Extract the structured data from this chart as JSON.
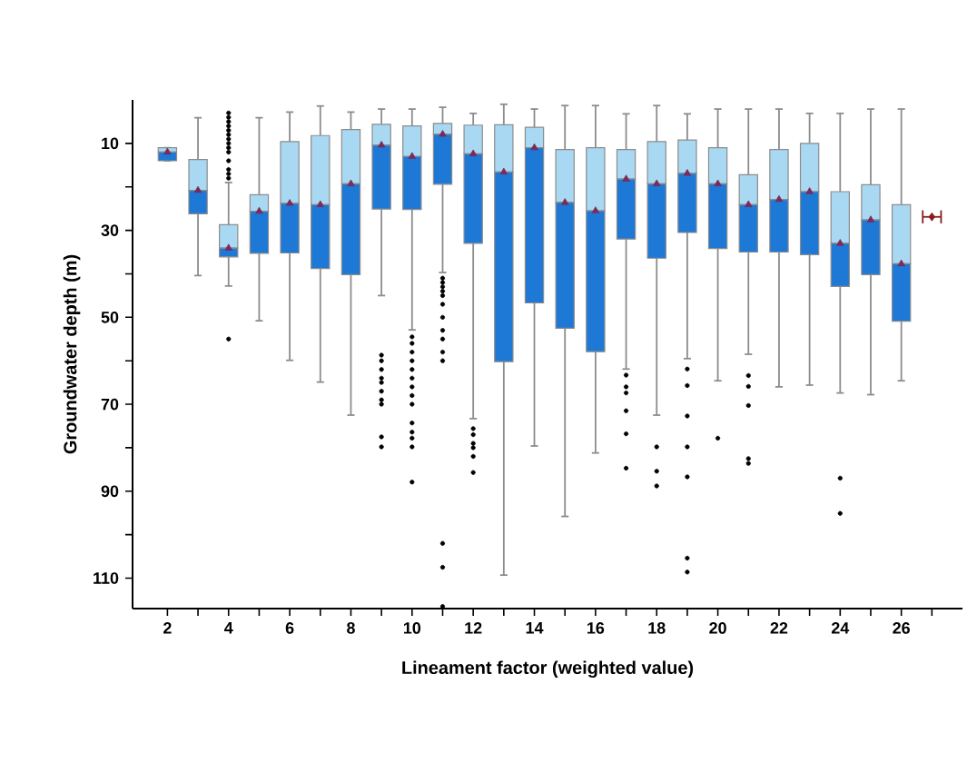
{
  "chart_data": {
    "type": "box",
    "xlabel": "Lineament factor (weighted value)",
    "ylabel": "Groundwater depth (m)",
    "x": [
      2,
      3,
      4,
      5,
      6,
      7,
      8,
      9,
      10,
      11,
      12,
      13,
      14,
      15,
      16,
      17,
      18,
      19,
      20,
      21,
      22,
      23,
      24,
      25,
      26
    ],
    "xlim": [
      0.86,
      28
    ],
    "xticks": [
      2,
      {
        "value": 3,
        "label": null
      },
      4,
      {
        "value": 5,
        "label": null
      },
      6,
      {
        "value": 7,
        "label": null
      },
      8,
      {
        "value": 9,
        "label": null
      },
      10,
      {
        "value": 11,
        "label": null
      },
      12,
      {
        "value": 13,
        "label": null
      },
      14,
      {
        "value": 15,
        "label": null
      },
      16,
      {
        "value": 17,
        "label": null
      },
      18,
      {
        "value": 19,
        "label": null
      },
      20,
      {
        "value": 21,
        "label": null
      },
      22,
      {
        "value": 23,
        "label": null
      },
      24,
      {
        "value": 25,
        "label": null
      },
      26,
      {
        "value": 27,
        "label": null
      }
    ],
    "ylim": [
      117,
      0
    ],
    "yticks": [
      10,
      {
        "value": 20,
        "label": null
      },
      30,
      {
        "value": 40,
        "label": null
      },
      50,
      {
        "value": 60,
        "label": null
      },
      70,
      {
        "value": 80,
        "label": null
      },
      90,
      {
        "value": 100,
        "label": null
      },
      110
    ],
    "series": [
      {
        "color": "#a9d8f2",
        "boxes": [
          {
            "low": 11,
            "q1": 11,
            "median": 12,
            "q3": 14,
            "high": 14,
            "mean": 12
          },
          {
            "low": 4.1,
            "q1": 13.7,
            "median": 20.8,
            "q3": 26.2,
            "high": 40.4,
            "mean": 20.8
          },
          {
            "low": 19,
            "q1": 28.7,
            "median": 34.1,
            "q3": 36.1,
            "high": 42.8,
            "mean": 34.1,
            "outliers": [
              3,
              4,
              5,
              6,
              7,
              8,
              9,
              10,
              11,
              12,
              14,
              16,
              17,
              18,
              55
            ]
          },
          {
            "low": 4.1,
            "q1": 21.8,
            "median": 25.6,
            "q3": 35.3,
            "high": 50.8,
            "mean": 25.6
          },
          {
            "low": 2.8,
            "q1": 9.6,
            "median": 23.8,
            "q3": 35.2,
            "high": 59.9,
            "mean": 23.8
          },
          {
            "low": 1.4,
            "q1": 8.2,
            "median": 24.1,
            "q3": 38.8,
            "high": 64.9,
            "mean": 24.1
          },
          {
            "low": 2.8,
            "q1": 6.8,
            "median": 19.3,
            "q3": 40.2,
            "high": 72.5,
            "mean": 19.3
          },
          {
            "low": 2.1,
            "q1": 5.6,
            "median": 10.4,
            "q3": 25.1,
            "high": 45.0,
            "mean": 10.4,
            "outliers": [
              58.7,
              60,
              62,
              64,
              65,
              67,
              69,
              70,
              77.5,
              79.8
            ]
          },
          {
            "low": 2.1,
            "q1": 6.0,
            "median": 13.0,
            "q3": 25.2,
            "high": 52.9,
            "mean": 13.0,
            "outliers": [
              54.5,
              56,
              58,
              60,
              62,
              64,
              66,
              68,
              70,
              74.3,
              76.4,
              77.8,
              79.8,
              87.9
            ]
          },
          {
            "low": 1.7,
            "q1": 5.4,
            "median": 7.9,
            "q3": 19.4,
            "high": 39.7,
            "mean": 7.9,
            "outliers": [
              41,
              42,
              43,
              44,
              45,
              47,
              50,
              53,
              55,
              58,
              60,
              102,
              107.5,
              116.5
            ]
          },
          {
            "low": 3.1,
            "q1": 5.8,
            "median": 12.4,
            "q3": 33.0,
            "high": 73.3,
            "mean": 12.4,
            "outliers": [
              75.6,
              77,
              79,
              80,
              82,
              85.7
            ]
          },
          {
            "low": 1.0,
            "q1": 5.7,
            "median": 16.6,
            "q3": 60.2,
            "high": 109.3,
            "mean": 16.6
          },
          {
            "low": 2.1,
            "q1": 6.3,
            "median": 11.0,
            "q3": 46.7,
            "high": 79.6,
            "mean": 11.0
          },
          {
            "low": 1.3,
            "q1": 11.4,
            "median": 23.6,
            "q3": 52.5,
            "high": 95.8,
            "mean": 23.6
          },
          {
            "low": 1.3,
            "q1": 11.0,
            "median": 25.5,
            "q3": 57.9,
            "high": 81.2,
            "mean": 25.5
          },
          {
            "low": 3.2,
            "q1": 11.4,
            "median": 18.2,
            "q3": 32.0,
            "high": 61.9,
            "mean": 18.2,
            "outliers": [
              63.3,
              66,
              67.4,
              71.5,
              76.8,
              84.7
            ]
          },
          {
            "low": 1.3,
            "q1": 9.6,
            "median": 19.3,
            "q3": 36.4,
            "high": 72.5,
            "mean": 19.3,
            "outliers": [
              79.8,
              85.4,
              88.8
            ]
          },
          {
            "low": 3.2,
            "q1": 9.2,
            "median": 16.9,
            "q3": 30.5,
            "high": 59.5,
            "mean": 16.9,
            "outliers": [
              61.9,
              65.7,
              72.7,
              79.8,
              86.7,
              105.4,
              108.6
            ]
          },
          {
            "low": 2.1,
            "q1": 11.0,
            "median": 19.3,
            "q3": 34.2,
            "high": 64.6,
            "mean": 19.3,
            "outliers": [
              77.8
            ]
          },
          {
            "low": 2.1,
            "q1": 17.2,
            "median": 24.1,
            "q3": 35.0,
            "high": 58.5,
            "mean": 24.1,
            "outliers": [
              63.4,
              65.9,
              70.3,
              82.5,
              83.6
            ]
          },
          {
            "low": 2.1,
            "q1": 11.4,
            "median": 22.9,
            "q3": 35.0,
            "high": 66.0,
            "mean": 22.9
          },
          {
            "low": 3.1,
            "q1": 10.0,
            "median": 21.1,
            "q3": 35.6,
            "high": 65.6,
            "mean": 21.1
          },
          {
            "low": 3.1,
            "q1": 21.1,
            "median": 33.0,
            "q3": 42.9,
            "high": 67.4,
            "mean": 33.0,
            "outliers": [
              87.0,
              95.1
            ]
          },
          {
            "low": 2.1,
            "q1": 19.5,
            "median": 27.6,
            "q3": 40.2,
            "high": 67.8,
            "mean": 27.6
          },
          {
            "low": 2.1,
            "q1": 24.1,
            "median": 37.7,
            "q3": 50.9,
            "high": 64.6,
            "mean": 37.7
          }
        ]
      },
      {
        "type": "scatter",
        "color": "#8b1a1a",
        "marker": "diamond",
        "x": [
          27
        ],
        "values": [
          26.9
        ],
        "xerrors": [
          0.3
        ]
      }
    ]
  }
}
